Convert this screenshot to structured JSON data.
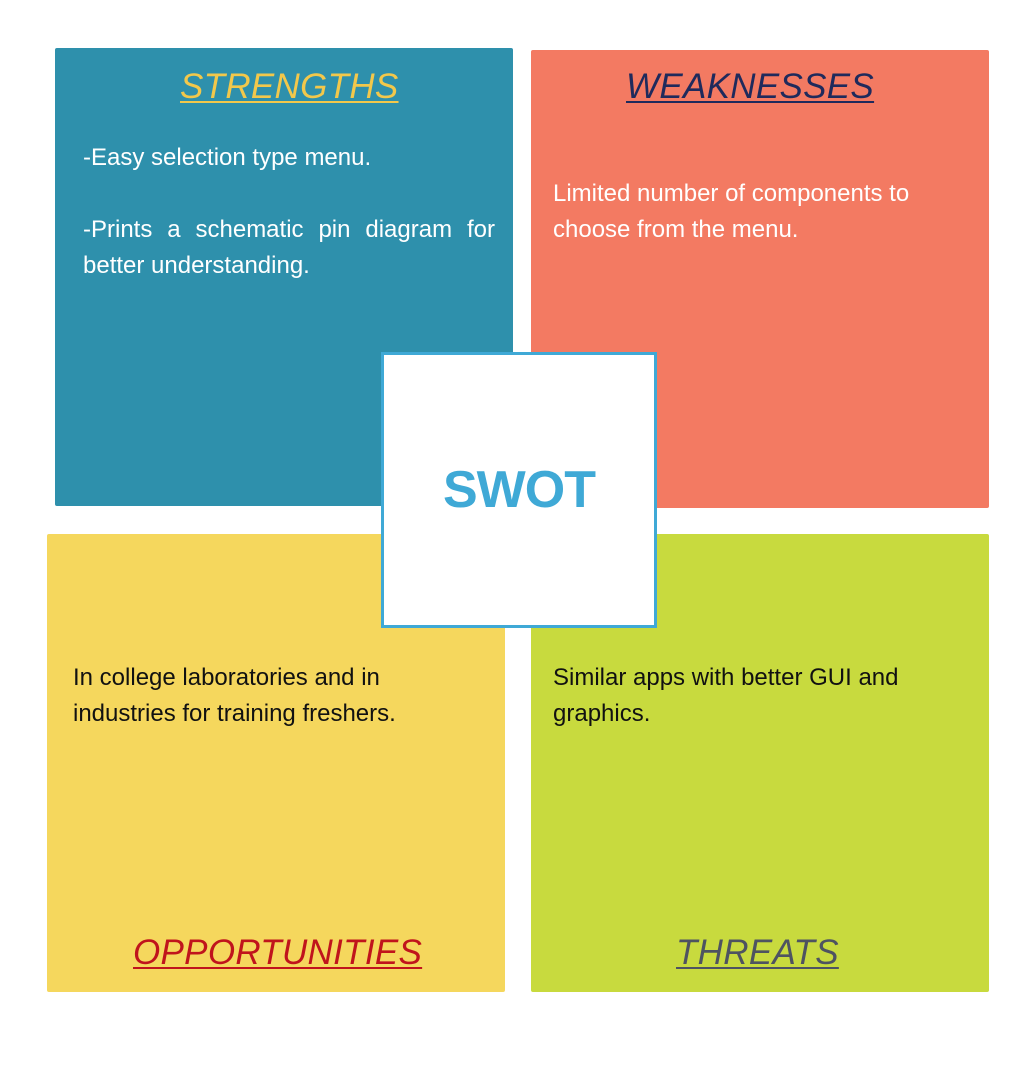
{
  "strengths": {
    "title": "STRENGTHS",
    "items": [
      "-Easy selection type menu.",
      "-Prints a schematic pin diagram for better understanding."
    ]
  },
  "weaknesses": {
    "title": "WEAKNESSES",
    "text": "Limited number of components to choose from the menu."
  },
  "opportunities": {
    "title": "OPPORTUNITIES",
    "text": "In college laboratories and in industries for training freshers."
  },
  "threats": {
    "title": "THREATS",
    "text": "Similar apps with better GUI and graphics."
  },
  "center": {
    "label": "SWOT"
  },
  "colors": {
    "strengths": "#2e90ac",
    "weaknesses": "#f37a62",
    "opportunities": "#f5d75d",
    "threats": "#c8da3e",
    "accent": "#3fa9d6"
  }
}
